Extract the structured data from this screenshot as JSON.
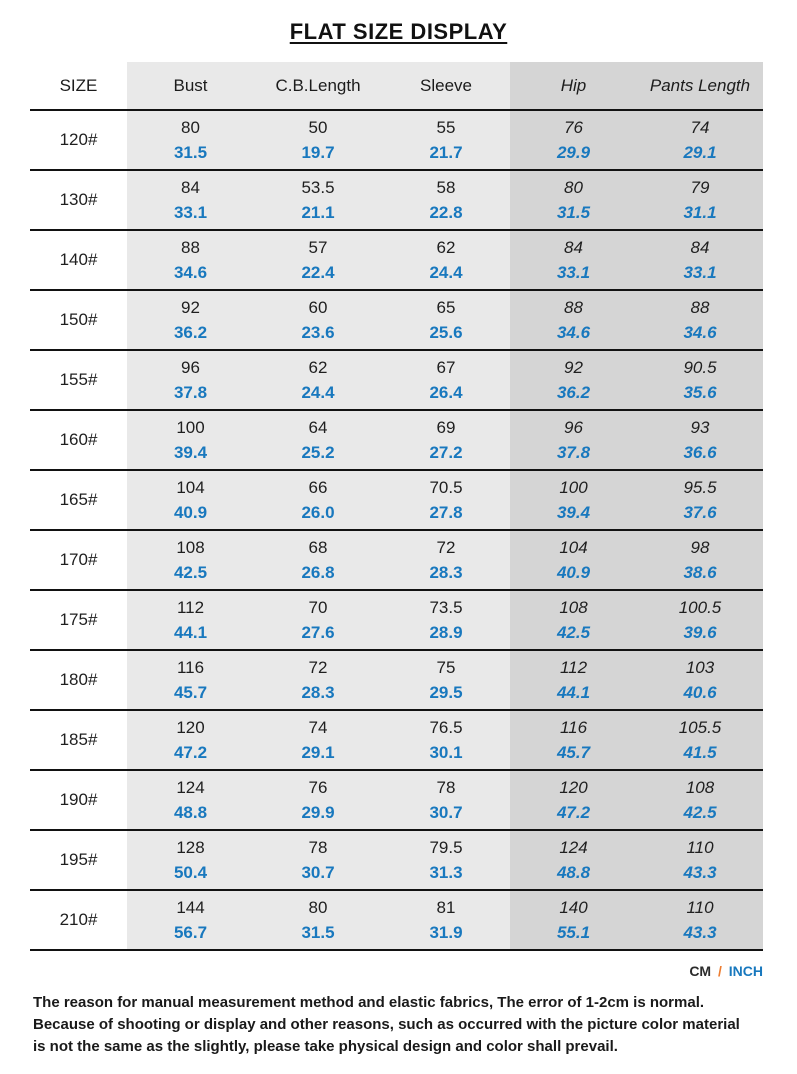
{
  "chart_data": {
    "type": "table",
    "title": "FLAT SIZE DISPLAY",
    "columns": [
      {
        "key": "size",
        "label": "SIZE",
        "zone": "none"
      },
      {
        "key": "bust",
        "label": "Bust",
        "zone": "light"
      },
      {
        "key": "cb-length",
        "label": "C.B.Length",
        "zone": "light"
      },
      {
        "key": "sleeve",
        "label": "Sleeve",
        "zone": "light"
      },
      {
        "key": "hip",
        "label": "Hip",
        "zone": "dark"
      },
      {
        "key": "pants-length",
        "label": "Pants Length",
        "zone": "dark"
      }
    ],
    "rows": [
      {
        "size": "120#",
        "cm": [
          "80",
          "50",
          "55",
          "76",
          "74"
        ],
        "inch": [
          "31.5",
          "19.7",
          "21.7",
          "29.9",
          "29.1"
        ]
      },
      {
        "size": "130#",
        "cm": [
          "84",
          "53.5",
          "58",
          "80",
          "79"
        ],
        "inch": [
          "33.1",
          "21.1",
          "22.8",
          "31.5",
          "31.1"
        ]
      },
      {
        "size": "140#",
        "cm": [
          "88",
          "57",
          "62",
          "84",
          "84"
        ],
        "inch": [
          "34.6",
          "22.4",
          "24.4",
          "33.1",
          "33.1"
        ]
      },
      {
        "size": "150#",
        "cm": [
          "92",
          "60",
          "65",
          "88",
          "88"
        ],
        "inch": [
          "36.2",
          "23.6",
          "25.6",
          "34.6",
          "34.6"
        ]
      },
      {
        "size": "155#",
        "cm": [
          "96",
          "62",
          "67",
          "92",
          "90.5"
        ],
        "inch": [
          "37.8",
          "24.4",
          "26.4",
          "36.2",
          "35.6"
        ]
      },
      {
        "size": "160#",
        "cm": [
          "100",
          "64",
          "69",
          "96",
          "93"
        ],
        "inch": [
          "39.4",
          "25.2",
          "27.2",
          "37.8",
          "36.6"
        ]
      },
      {
        "size": "165#",
        "cm": [
          "104",
          "66",
          "70.5",
          "100",
          "95.5"
        ],
        "inch": [
          "40.9",
          "26.0",
          "27.8",
          "39.4",
          "37.6"
        ]
      },
      {
        "size": "170#",
        "cm": [
          "108",
          "68",
          "72",
          "104",
          "98"
        ],
        "inch": [
          "42.5",
          "26.8",
          "28.3",
          "40.9",
          "38.6"
        ]
      },
      {
        "size": "175#",
        "cm": [
          "112",
          "70",
          "73.5",
          "108",
          "100.5"
        ],
        "inch": [
          "44.1",
          "27.6",
          "28.9",
          "42.5",
          "39.6"
        ]
      },
      {
        "size": "180#",
        "cm": [
          "116",
          "72",
          "75",
          "112",
          "103"
        ],
        "inch": [
          "45.7",
          "28.3",
          "29.5",
          "44.1",
          "40.6"
        ]
      },
      {
        "size": "185#",
        "cm": [
          "120",
          "74",
          "76.5",
          "116",
          "105.5"
        ],
        "inch": [
          "47.2",
          "29.1",
          "30.1",
          "45.7",
          "41.5"
        ]
      },
      {
        "size": "190#",
        "cm": [
          "124",
          "76",
          "78",
          "120",
          "108"
        ],
        "inch": [
          "48.8",
          "29.9",
          "30.7",
          "47.2",
          "42.5"
        ]
      },
      {
        "size": "195#",
        "cm": [
          "128",
          "78",
          "79.5",
          "124",
          "110"
        ],
        "inch": [
          "50.4",
          "30.7",
          "31.3",
          "48.8",
          "43.3"
        ]
      },
      {
        "size": "210#",
        "cm": [
          "144",
          "80",
          "81",
          "140",
          "110"
        ],
        "inch": [
          "56.7",
          "31.5",
          "31.9",
          "55.1",
          "43.3"
        ]
      }
    ]
  },
  "units": {
    "cm": "CM",
    "separator": "/",
    "inch": "INCH"
  },
  "disclaimer": {
    "lines": [
      "The reason for manual measurement method and elastic fabrics, The error of 1-2cm is normal.",
      "Because of shooting or display and other reasons, such as occurred with the picture color material",
      "is not the same as the slightly, please take physical design and color shall prevail."
    ]
  },
  "colors": {
    "light_column_bg": "#e9e9e9",
    "dark_column_bg": "#d5d5d5",
    "inch_value_blue": "#1878be",
    "separator_orange": "#ed7d31",
    "line_black": "#121212"
  }
}
